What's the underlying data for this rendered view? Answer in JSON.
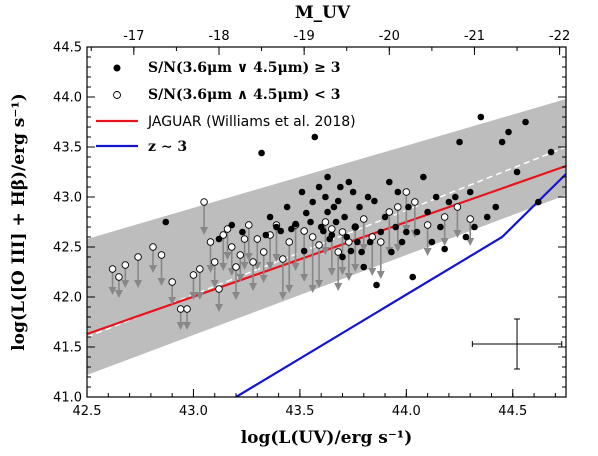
{
  "chart_data": {
    "type": "scatter",
    "xlabel": "log(L(UV)/erg s⁻¹)",
    "ylabel": "log(L([O III] + Hβ)/erg s⁻¹)",
    "top_xlabel": "M_UV",
    "xlim": [
      42.5,
      44.75
    ],
    "ylim": [
      41.0,
      44.5
    ],
    "xticks": [
      "42.5",
      "43.0",
      "43.5",
      "44.0",
      "44.5"
    ],
    "yticks": [
      "41.0",
      "41.5",
      "42.0",
      "42.5",
      "43.0",
      "43.5",
      "44.0",
      "44.5"
    ],
    "top_ticks": [
      {
        "label": "-17",
        "x": 42.72
      },
      {
        "label": "-18",
        "x": 43.12
      },
      {
        "label": "-19",
        "x": 43.52
      },
      {
        "label": "-20",
        "x": 43.92
      },
      {
        "label": "-21",
        "x": 44.32
      },
      {
        "label": "-22",
        "x": 44.72
      }
    ],
    "legend": [
      {
        "marker": "filled-circle",
        "label": "S/N(3.6μm ∨ 4.5μm) ≥ 3"
      },
      {
        "marker": "open-circle",
        "label": "S/N(3.6μm ∧ 4.5μm) < 3"
      },
      {
        "marker": "red-line",
        "label": "JAGUAR (Williams et al. 2018)"
      },
      {
        "marker": "blue-line",
        "label": "z ∼ 3"
      }
    ],
    "fit_band": {
      "x": [
        42.5,
        44.75
      ],
      "upper": [
        42.58,
        43.98
      ],
      "lower": [
        41.22,
        43.02
      ],
      "median": [
        41.6,
        43.5
      ]
    },
    "series": [
      {
        "name": "JAGUAR (Williams et al. 2018)",
        "kind": "line",
        "color": "#e8141c",
        "x": [
          42.5,
          44.75
        ],
        "y": [
          41.63,
          43.31
        ]
      },
      {
        "name": "z ∼ 3",
        "kind": "line",
        "color": "#1414d2",
        "x": [
          43.2,
          44.45,
          44.75
        ],
        "y": [
          41.0,
          42.6,
          43.23
        ]
      },
      {
        "name": "S/N(3.6μm ∨ 4.5μm) ≥ 3",
        "kind": "filled",
        "x": [
          42.87,
          43.12,
          43.18,
          43.23,
          43.32,
          43.34,
          43.36,
          43.39,
          43.41,
          43.44,
          43.46,
          43.48,
          43.51,
          43.52,
          43.53,
          43.55,
          43.56,
          43.57,
          43.59,
          43.6,
          43.61,
          43.62,
          43.63,
          43.63,
          43.64,
          43.65,
          43.66,
          43.67,
          43.68,
          43.69,
          43.7,
          43.71,
          43.72,
          43.73,
          43.74,
          43.75,
          43.76,
          43.77,
          43.78,
          43.79,
          43.8,
          43.82,
          43.83,
          43.85,
          43.86,
          43.88,
          43.9,
          43.92,
          43.93,
          43.95,
          43.96,
          43.98,
          44.0,
          44.01,
          44.03,
          44.05,
          44.08,
          44.1,
          44.12,
          44.14,
          44.16,
          44.18,
          44.2,
          44.23,
          44.25,
          44.28,
          44.3,
          44.32,
          44.35,
          44.38,
          44.42,
          44.45,
          44.48,
          44.52,
          44.56,
          44.62,
          44.68
        ],
        "y": [
          42.75,
          42.58,
          42.72,
          42.65,
          43.44,
          42.62,
          42.8,
          42.7,
          42.66,
          42.9,
          42.68,
          42.73,
          43.05,
          42.46,
          42.84,
          42.75,
          42.95,
          43.6,
          43.1,
          42.7,
          42.66,
          43.0,
          42.85,
          43.2,
          42.58,
          42.62,
          42.9,
          42.75,
          42.96,
          43.1,
          42.4,
          42.8,
          42.6,
          43.15,
          42.46,
          43.05,
          42.7,
          42.55,
          42.9,
          42.45,
          42.3,
          43.0,
          42.55,
          42.96,
          42.12,
          42.65,
          42.8,
          43.15,
          42.45,
          42.7,
          43.05,
          42.55,
          42.65,
          42.9,
          42.2,
          42.65,
          43.2,
          42.85,
          42.55,
          43.0,
          42.7,
          42.48,
          42.95,
          43.0,
          43.55,
          42.6,
          43.05,
          42.7,
          43.8,
          42.8,
          42.9,
          43.55,
          43.65,
          43.25,
          43.75,
          42.95,
          43.45
        ]
      },
      {
        "name": "S/N(3.6μm ∧ 4.5μm) < 3",
        "kind": "open",
        "x": [
          42.62,
          42.65,
          42.68,
          42.74,
          42.81,
          42.85,
          42.9,
          42.94,
          42.97,
          43.0,
          43.03,
          43.05,
          43.08,
          43.1,
          43.12,
          43.14,
          43.16,
          43.18,
          43.2,
          43.22,
          43.24,
          43.26,
          43.28,
          43.3,
          43.33,
          43.36,
          43.39,
          43.42,
          43.45,
          43.48,
          43.52,
          43.56,
          43.59,
          43.62,
          43.65,
          43.68,
          43.7,
          43.73,
          43.76,
          43.8,
          43.84,
          43.88,
          43.92,
          43.96,
          44.0,
          44.04,
          44.1,
          44.18,
          44.24,
          44.3
        ],
        "y": [
          42.28,
          42.2,
          42.32,
          42.4,
          42.5,
          42.42,
          42.15,
          41.88,
          41.88,
          42.22,
          42.28,
          42.95,
          42.55,
          42.35,
          42.08,
          42.62,
          42.68,
          42.5,
          42.3,
          42.42,
          42.58,
          42.72,
          42.35,
          42.58,
          42.45,
          42.62,
          42.72,
          42.38,
          42.55,
          42.72,
          42.66,
          42.6,
          42.52,
          42.75,
          42.68,
          42.45,
          42.65,
          42.55,
          42.7,
          42.78,
          42.6,
          42.55,
          42.85,
          42.9,
          43.05,
          42.95,
          42.72,
          42.8,
          42.9,
          42.78
        ],
        "arrow_dy": [
          0.25,
          0.2,
          0.22,
          0.3,
          0.25,
          0.3,
          0.22,
          0.2,
          0.2,
          0.24,
          0.3,
          0.32,
          0.3,
          0.25,
          0.22,
          0.35,
          0.3,
          0.28,
          0.32,
          0.26,
          0.3,
          0.35,
          0.28,
          0.3,
          0.3,
          0.34,
          0.36,
          0.4,
          0.5,
          0.45,
          0.5,
          0.55,
          0.42,
          0.32,
          0.46,
          0.38,
          0.42,
          0.38,
          0.44,
          0.32,
          0.38,
          0.36,
          0.42,
          0.44,
          0.4,
          0.35,
          0.3,
          0.28,
          0.3,
          0.26
        ]
      }
    ],
    "error_bar": {
      "x": 44.52,
      "y": 41.53,
      "xerr": 0.21,
      "yerr": 0.25
    }
  }
}
